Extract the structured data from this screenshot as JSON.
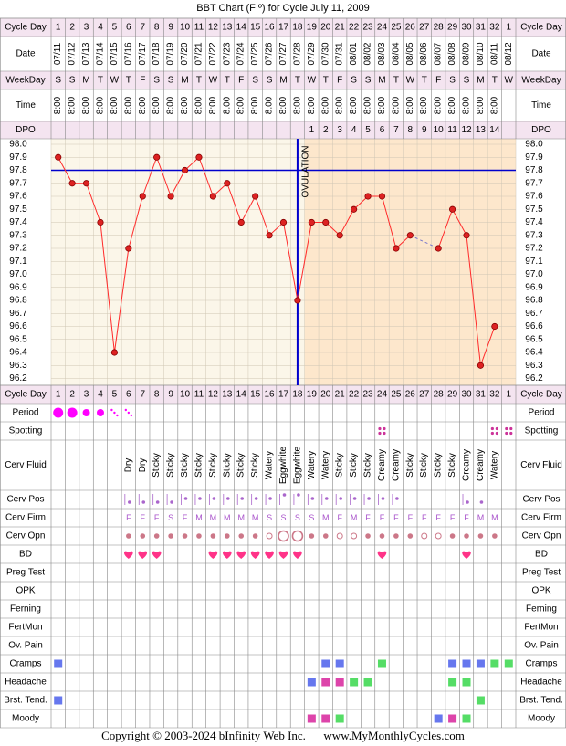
{
  "chart_data": {
    "type": "line",
    "title": "BBT Chart (F º) for Cycle July 11, 2009",
    "row_labels": {
      "cycle_day": "Cycle Day",
      "date": "Date",
      "weekday": "WeekDay",
      "time": "Time",
      "dpo": "DPO",
      "period": "Period",
      "spotting": "Spotting",
      "cerv_fluid": "Cerv Fluid",
      "cerv_pos": "Cerv Pos",
      "cerv_firm": "Cerv Firm",
      "cerv_opn": "Cerv Opn",
      "bd": "BD",
      "preg_test": "Preg Test",
      "opk": "OPK",
      "ferning": "Ferning",
      "fertmon": "FertMon",
      "ov_pain": "Ov. Pain",
      "cramps": "Cramps",
      "headache": "Headache",
      "brst_tend": "Brst. Tend.",
      "moody": "Moody"
    },
    "cycle_days": [
      "1",
      "2",
      "3",
      "4",
      "5",
      "6",
      "7",
      "8",
      "9",
      "10",
      "11",
      "12",
      "13",
      "14",
      "15",
      "16",
      "17",
      "18",
      "19",
      "20",
      "21",
      "22",
      "23",
      "24",
      "25",
      "26",
      "27",
      "28",
      "29",
      "30",
      "31",
      "32",
      "1"
    ],
    "dates": [
      "07/11",
      "07/12",
      "07/13",
      "07/14",
      "07/15",
      "07/16",
      "07/17",
      "07/18",
      "07/19",
      "07/20",
      "07/21",
      "07/22",
      "07/23",
      "07/24",
      "07/25",
      "07/26",
      "07/27",
      "07/28",
      "07/29",
      "07/30",
      "07/31",
      "08/01",
      "08/02",
      "08/03",
      "08/04",
      "08/05",
      "08/06",
      "08/07",
      "08/08",
      "08/09",
      "08/10",
      "08/11",
      "08/12"
    ],
    "weekdays": [
      "S",
      "S",
      "M",
      "T",
      "W",
      "T",
      "F",
      "S",
      "S",
      "M",
      "T",
      "W",
      "T",
      "F",
      "S",
      "S",
      "M",
      "T",
      "W",
      "T",
      "F",
      "S",
      "S",
      "M",
      "T",
      "W",
      "T",
      "F",
      "S",
      "S",
      "M",
      "T",
      "W"
    ],
    "times": [
      "8:00",
      "8:00",
      "8:00",
      "8:00",
      "8:00",
      "8:00",
      "8:00",
      "8:00",
      "8:00",
      "8:00",
      "8:00",
      "8:00",
      "8:00",
      "8:00",
      "8:00",
      "8:00",
      "8:00",
      "8:00",
      "8:00",
      "8:00",
      "8:00",
      "8:00",
      "8:00",
      "8:00",
      "8:00",
      "8:00",
      "8:00",
      "8:00",
      "8:00",
      "8:00",
      "8:00",
      "8:00",
      ""
    ],
    "dpo": [
      "",
      "",
      "",
      "",
      "",
      "",
      "",
      "",
      "",
      "",
      "",
      "",
      "",
      "",
      "",
      "",
      "",
      "",
      "1",
      "2",
      "3",
      "4",
      "5",
      "6",
      "7",
      "8",
      "9",
      "10",
      "11",
      "12",
      "13",
      "14",
      ""
    ],
    "temps": [
      97.9,
      97.7,
      97.7,
      97.4,
      96.4,
      97.2,
      97.6,
      97.9,
      97.6,
      97.8,
      97.9,
      97.6,
      97.7,
      97.4,
      97.6,
      97.3,
      97.4,
      96.8,
      97.4,
      97.4,
      97.3,
      97.5,
      97.6,
      97.6,
      97.2,
      97.3,
      null,
      97.2,
      97.5,
      97.3,
      96.3,
      96.6,
      null
    ],
    "dashed_gap": {
      "from_day_index": 25,
      "to_day_index": 27
    },
    "y_ticks": [
      "98.0",
      "97.9",
      "97.8",
      "97.7",
      "97.6",
      "97.5",
      "97.4",
      "97.3",
      "97.2",
      "97.1",
      "97.0",
      "96.9",
      "96.8",
      "96.7",
      "96.6",
      "96.5",
      "96.4",
      "96.3",
      "96.2"
    ],
    "ylim": [
      96.2,
      98.0
    ],
    "coverline": 97.8,
    "ovulation_label": "OVULATION",
    "ovulation_day_index": 17,
    "colors": {
      "line": "#ff2a2a",
      "point": "#dd2222",
      "coverline": "#0000cc",
      "pre_ov_bg": "#fbf6e9",
      "post_ov_bg": "#fde7cc",
      "header_bg": "#f4e4f0",
      "period": "#ff00ff",
      "bd_heart": "#ff3388",
      "symptom_blue": "#6677ee",
      "symptom_pink": "#dd44aa",
      "symptom_green": "#55dd66"
    },
    "period": [
      "large",
      "large",
      "medium",
      "medium",
      "light",
      "light",
      "",
      "",
      "",
      "",
      "",
      "",
      "",
      "",
      "",
      "",
      "",
      "",
      "",
      "",
      "",
      "",
      "",
      "",
      "",
      "",
      "",
      "",
      "",
      "",
      "",
      "",
      ""
    ],
    "spotting": [
      "",
      "",
      "",
      "",
      "",
      "",
      "",
      "",
      "",
      "",
      "",
      "",
      "",
      "",
      "",
      "",
      "",
      "",
      "",
      "",
      "",
      "",
      "",
      "y",
      "",
      "",
      "",
      "",
      "",
      "",
      "",
      "y",
      "y"
    ],
    "cerv_fluid": [
      "",
      "",
      "",
      "",
      "",
      "Dry",
      "Dry",
      "Sticky",
      "Sticky",
      "Sticky",
      "Sticky",
      "Sticky",
      "Sticky",
      "Sticky",
      "Sticky",
      "Watery",
      "Eggwhite",
      "Eggwhite",
      "Watery",
      "Watery",
      "Sticky",
      "Sticky",
      "Sticky",
      "Creamy",
      "Creamy",
      "Sticky",
      "Sticky",
      "Sticky",
      "Sticky",
      "Creamy",
      "Creamy",
      "Watery",
      ""
    ],
    "cerv_pos": [
      "",
      "",
      "",
      "",
      "",
      "l",
      "l",
      "l",
      "l",
      "m",
      "m",
      "m",
      "m",
      "m",
      "m",
      "m",
      "h",
      "h",
      "m",
      "m",
      "m",
      "m",
      "m",
      "m",
      "m",
      "",
      "",
      "",
      "",
      "l",
      "l",
      "",
      ""
    ],
    "cerv_firm": [
      "",
      "",
      "",
      "",
      "",
      "F",
      "F",
      "F",
      "S",
      "F",
      "M",
      "M",
      "M",
      "M",
      "M",
      "S",
      "S",
      "S",
      "S",
      "M",
      "F",
      "M",
      "F",
      "F",
      "F",
      "F",
      "F",
      "F",
      "F",
      "F",
      "M",
      "M",
      ""
    ],
    "cerv_opn": [
      "",
      "",
      "",
      "",
      "",
      "dot",
      "dot",
      "dot",
      "dot",
      "dot",
      "dot",
      "dot",
      "dot",
      "dot",
      "dot",
      "ring",
      "bigring",
      "bigring",
      "dot",
      "dot",
      "ring",
      "ring",
      "dot",
      "dot",
      "dot",
      "dot",
      "ring",
      "ring",
      "dot",
      "dot",
      "dot",
      "dot",
      ""
    ],
    "bd": [
      "",
      "",
      "",
      "",
      "",
      "y",
      "y",
      "y",
      "",
      "",
      "",
      "y",
      "y",
      "y",
      "y",
      "y",
      "y",
      "y",
      "",
      "",
      "",
      "",
      "",
      "y",
      "",
      "",
      "",
      "",
      "",
      "y",
      "",
      "",
      ""
    ],
    "cramps": [
      "blue",
      "",
      "",
      "",
      "",
      "",
      "",
      "",
      "",
      "",
      "",
      "",
      "",
      "",
      "",
      "",
      "",
      "",
      "",
      "blue",
      "blue",
      "",
      "",
      "green",
      "",
      "",
      "",
      "",
      "blue",
      "blue",
      "blue",
      "green",
      "green"
    ],
    "headache": [
      "",
      "",
      "",
      "",
      "",
      "",
      "",
      "",
      "",
      "",
      "",
      "",
      "",
      "",
      "",
      "",
      "",
      "",
      "blue",
      "pink",
      "pink",
      "green",
      "green",
      "",
      "",
      "",
      "",
      "",
      "green",
      "green",
      "",
      "",
      ""
    ],
    "brst_tend": [
      "blue",
      "",
      "",
      "",
      "",
      "",
      "",
      "",
      "",
      "",
      "",
      "",
      "",
      "",
      "",
      "",
      "",
      "",
      "",
      "",
      "",
      "",
      "",
      "",
      "",
      "",
      "",
      "",
      "",
      "",
      "green",
      "",
      ""
    ],
    "moody": [
      "",
      "",
      "",
      "",
      "",
      "",
      "",
      "",
      "",
      "",
      "",
      "",
      "",
      "",
      "",
      "",
      "",
      "",
      "pink",
      "pink",
      "green",
      "",
      "",
      "",
      "",
      "",
      "",
      "blue",
      "pink",
      "green",
      "",
      "",
      ""
    ]
  },
  "footer": {
    "copyright": "Copyright © 2003-2024 bInfinity Web Inc.",
    "site": "www.MyMonthlyCycles.com"
  }
}
